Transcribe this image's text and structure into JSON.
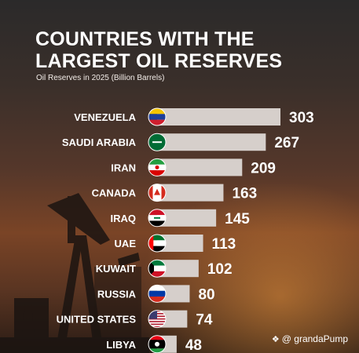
{
  "title": {
    "line1": "COUNTRIES WITH THE",
    "line2": "LARGEST OIL RESERVES"
  },
  "subtitle": "Oil Reserves in 2025 (Billion Barrels)",
  "watermark": {
    "logo_icon": "diamond-logo-icon",
    "text": "@ grandaPump"
  },
  "colors": {
    "bar": "#d6cfcb",
    "label": "#ffffff"
  },
  "chart_data": {
    "type": "bar",
    "orientation": "horizontal",
    "title": "COUNTRIES WITH THE LARGEST OIL RESERVES",
    "subtitle": "Oil Reserves in 2025 (Billion Barrels)",
    "categories": [
      "VENEZUELA",
      "SAUDI ARABIA",
      "IRAN",
      "CANADA",
      "IRAQ",
      "UAE",
      "KUWAIT",
      "RUSSIA",
      "UNITED STATES",
      "LIBYA"
    ],
    "values": [
      303,
      267,
      209,
      163,
      145,
      113,
      102,
      80,
      74,
      48
    ],
    "flags": [
      "venezuela-flag-icon",
      "saudi-arabia-flag-icon",
      "iran-flag-icon",
      "canada-flag-icon",
      "iraq-flag-icon",
      "uae-flag-icon",
      "kuwait-flag-icon",
      "russia-flag-icon",
      "united-states-flag-icon",
      "libya-flag-icon"
    ],
    "data_labels": true,
    "grid": false,
    "legend": "none"
  }
}
